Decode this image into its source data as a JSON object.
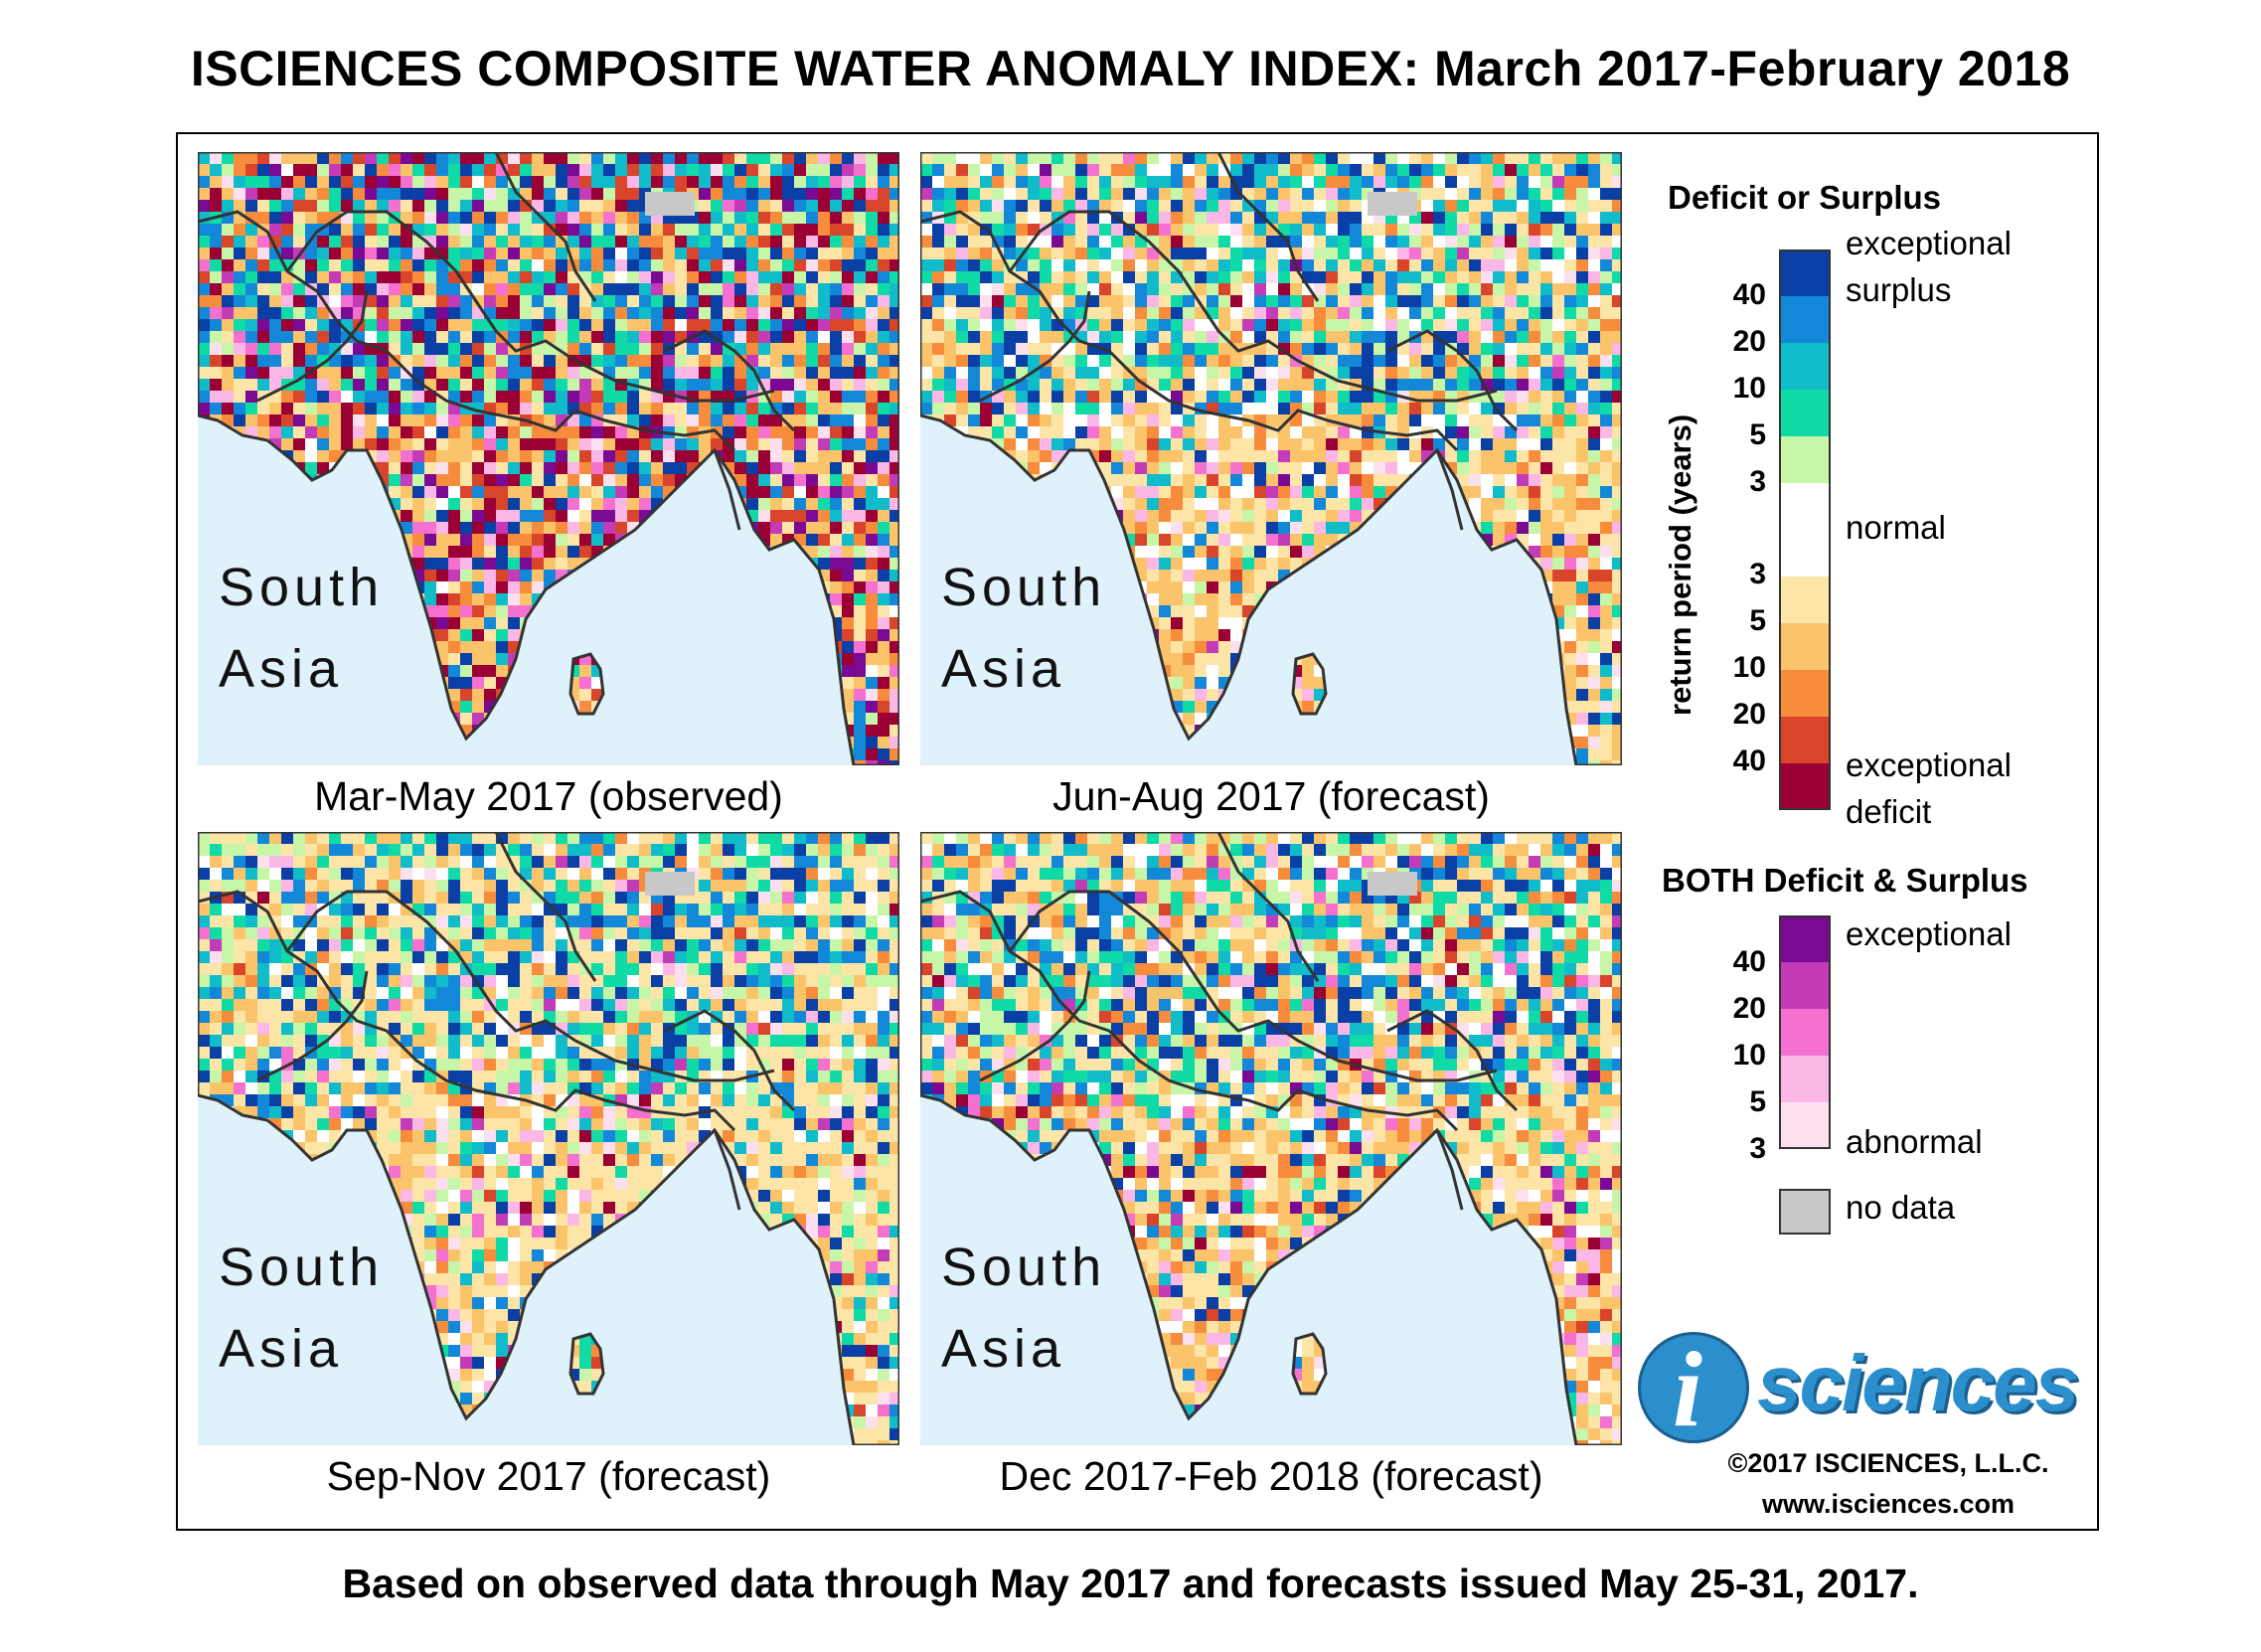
{
  "title": "ISCIENCES COMPOSITE WATER ANOMALY INDEX: March 2017-February 2018",
  "maps": [
    {
      "region_line1": "South",
      "region_line2": "Asia",
      "caption": "Mar-May 2017 (observed)",
      "dominant": "deficit-severe"
    },
    {
      "region_line1": "South",
      "region_line2": "Asia",
      "caption": "Jun-Aug 2017 (forecast)",
      "dominant": "deficit-moderate"
    },
    {
      "region_line1": "South",
      "region_line2": "Asia",
      "caption": "Sep-Nov 2017 (forecast)",
      "dominant": "deficit-mild"
    },
    {
      "region_line1": "South",
      "region_line2": "Asia",
      "caption": "Dec 2017-Feb 2018 (forecast)",
      "dominant": "deficit-moderate"
    }
  ],
  "legend": {
    "deficit_surplus_title": "Deficit or Surplus",
    "axis_label": "return period (years)",
    "exceptional_label": "exceptional",
    "surplus_label": "surplus",
    "normal_label": "normal",
    "exceptional_deficit_label": "exceptional",
    "deficit_label": "deficit",
    "surplus_ticks": [
      "40",
      "20",
      "10",
      "5",
      "3"
    ],
    "deficit_ticks": [
      "3",
      "5",
      "10",
      "20",
      "40"
    ],
    "surplus_colors": [
      "#0a3fa6",
      "#1388d8",
      "#10bcc9",
      "#10dba6",
      "#c7f6a8"
    ],
    "normal_color": "#ffffff",
    "deficit_colors": [
      "#fde5a8",
      "#fbc36a",
      "#f68c3c",
      "#d8452a",
      "#9b0034"
    ],
    "both_title": "BOTH Deficit & Surplus",
    "both_exceptional_label": "exceptional",
    "both_abnormal_label": "abnormal",
    "both_ticks": [
      "40",
      "20",
      "10",
      "5",
      "3"
    ],
    "both_colors": [
      "#7a0a93",
      "#c43bb8",
      "#f571cf",
      "#fbb7e6",
      "#fde0f0"
    ],
    "nodata_label": "no data",
    "nodata_color": "#c8c8c8"
  },
  "logo": {
    "mark": "i",
    "word": "sciences"
  },
  "copyright": "©2017 ISCIENCES, L.L.C.",
  "website": "www.isciences.com",
  "footer": "Based on observed data through May 2017 and forecasts issued May 25-31, 2017."
}
